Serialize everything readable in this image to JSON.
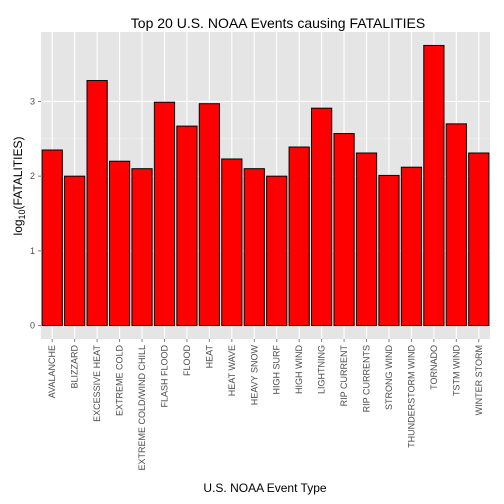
{
  "chart_data": {
    "type": "bar",
    "title": "Top 20 U.S. NOAA Events causing FATALITIES",
    "xlabel": "U.S. NOAA Event Type",
    "ylabel_main": "log",
    "ylabel_sub": "10",
    "ylabel_rest": "(FATALITIES)",
    "ylim": [
      -0.18,
      3.93
    ],
    "yticks": [
      0,
      1,
      2,
      3
    ],
    "grid": true,
    "bar_color": "#ff0000",
    "bar_stroke": "#000000",
    "panel_bg": "#e5e5e5",
    "categories": [
      "AVALANCHE",
      "BLIZZARD",
      "EXCESSIVE HEAT",
      "EXTREME COLD",
      "EXTREME COLD/WIND CHILL",
      "FLASH FLOOD",
      "FLOOD",
      "HEAT",
      "HEAT WAVE",
      "HEAVY SNOW",
      "HIGH SURF",
      "HIGH WIND",
      "LIGHTNING",
      "RIP CURRENT",
      "RIP CURRENTS",
      "STRONG WIND",
      "THUNDERSTORM WIND",
      "TORNADO",
      "TSTM WIND",
      "WINTER STORM"
    ],
    "values": [
      2.35,
      2.0,
      3.28,
      2.2,
      2.1,
      2.99,
      2.67,
      2.97,
      2.23,
      2.1,
      2.0,
      2.39,
      2.91,
      2.57,
      2.31,
      2.01,
      2.12,
      3.75,
      2.7,
      2.31
    ]
  }
}
